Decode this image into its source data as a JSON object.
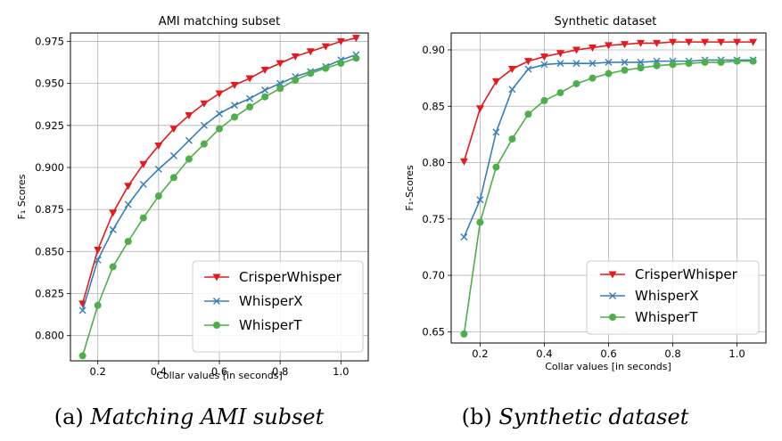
{
  "chart_data": [
    {
      "type": "line",
      "title": "AMI matching subset",
      "caption_label": "(a)",
      "caption_text": "Matching AMI subset",
      "xlabel": "Collar values [in seconds]",
      "ylabel": "F₁ Scores",
      "xlim": [
        0.11,
        1.09
      ],
      "ylim": [
        0.785,
        0.98
      ],
      "xticks": [
        0.2,
        0.4,
        0.6,
        0.8,
        1.0
      ],
      "yticks": [
        0.8,
        0.825,
        0.85,
        0.875,
        0.9,
        0.925,
        0.95,
        0.975
      ],
      "ytick_labels": [
        "0.800",
        "0.825",
        "0.850",
        "0.875",
        "0.900",
        "0.925",
        "0.950",
        "0.975"
      ],
      "grid": true,
      "legend": "lower-right",
      "x": [
        0.15,
        0.2,
        0.25,
        0.3,
        0.35,
        0.4,
        0.45,
        0.5,
        0.55,
        0.6,
        0.65,
        0.7,
        0.75,
        0.8,
        0.85,
        0.9,
        0.95,
        1.0,
        1.05
      ],
      "series": [
        {
          "name": "CrisperWhisper",
          "color": "#e41a1c",
          "marker": "triangle-down",
          "values": [
            0.819,
            0.851,
            0.873,
            0.889,
            0.902,
            0.913,
            0.923,
            0.931,
            0.938,
            0.944,
            0.949,
            0.953,
            0.958,
            0.962,
            0.966,
            0.969,
            0.972,
            0.975,
            0.977
          ]
        },
        {
          "name": "WhisperX",
          "color": "#377eb8",
          "marker": "x",
          "values": [
            0.815,
            0.845,
            0.863,
            0.878,
            0.89,
            0.899,
            0.907,
            0.916,
            0.925,
            0.932,
            0.937,
            0.941,
            0.946,
            0.95,
            0.954,
            0.957,
            0.96,
            0.964,
            0.967
          ]
        },
        {
          "name": "WhisperT",
          "color": "#4daf4a",
          "marker": "circle",
          "values": [
            0.788,
            0.818,
            0.841,
            0.856,
            0.87,
            0.883,
            0.894,
            0.905,
            0.914,
            0.923,
            0.93,
            0.936,
            0.942,
            0.947,
            0.952,
            0.956,
            0.959,
            0.962,
            0.965
          ]
        }
      ]
    },
    {
      "type": "line",
      "title": "Synthetic dataset",
      "caption_label": "(b)",
      "caption_text": "Synthetic dataset",
      "xlabel": "Collar values [in seconds]",
      "ylabel": "F₁-Scores",
      "xlim": [
        0.11,
        1.09
      ],
      "ylim": [
        0.64,
        0.915
      ],
      "xticks": [
        0.2,
        0.4,
        0.6,
        0.8,
        1.0
      ],
      "yticks": [
        0.65,
        0.7,
        0.75,
        0.8,
        0.85,
        0.9
      ],
      "ytick_labels": [
        "0.65",
        "0.70",
        "0.75",
        "0.80",
        "0.85",
        "0.90"
      ],
      "grid": true,
      "legend": "lower-right",
      "x": [
        0.15,
        0.2,
        0.25,
        0.3,
        0.35,
        0.4,
        0.45,
        0.5,
        0.55,
        0.6,
        0.65,
        0.7,
        0.75,
        0.8,
        0.85,
        0.9,
        0.95,
        1.0,
        1.05
      ],
      "series": [
        {
          "name": "CrisperWhisper",
          "color": "#e41a1c",
          "marker": "triangle-down",
          "values": [
            0.801,
            0.848,
            0.872,
            0.883,
            0.89,
            0.894,
            0.897,
            0.9,
            0.902,
            0.904,
            0.905,
            0.906,
            0.906,
            0.907,
            0.907,
            0.907,
            0.907,
            0.907,
            0.907
          ]
        },
        {
          "name": "WhisperX",
          "color": "#377eb8",
          "marker": "x",
          "values": [
            0.734,
            0.767,
            0.827,
            0.865,
            0.883,
            0.887,
            0.888,
            0.888,
            0.888,
            0.889,
            0.889,
            0.889,
            0.89,
            0.89,
            0.89,
            0.891,
            0.891,
            0.891,
            0.891
          ]
        },
        {
          "name": "WhisperT",
          "color": "#4daf4a",
          "marker": "circle",
          "values": [
            0.648,
            0.747,
            0.796,
            0.821,
            0.843,
            0.855,
            0.862,
            0.87,
            0.875,
            0.879,
            0.882,
            0.884,
            0.886,
            0.887,
            0.888,
            0.889,
            0.889,
            0.89,
            0.89
          ]
        }
      ]
    }
  ]
}
